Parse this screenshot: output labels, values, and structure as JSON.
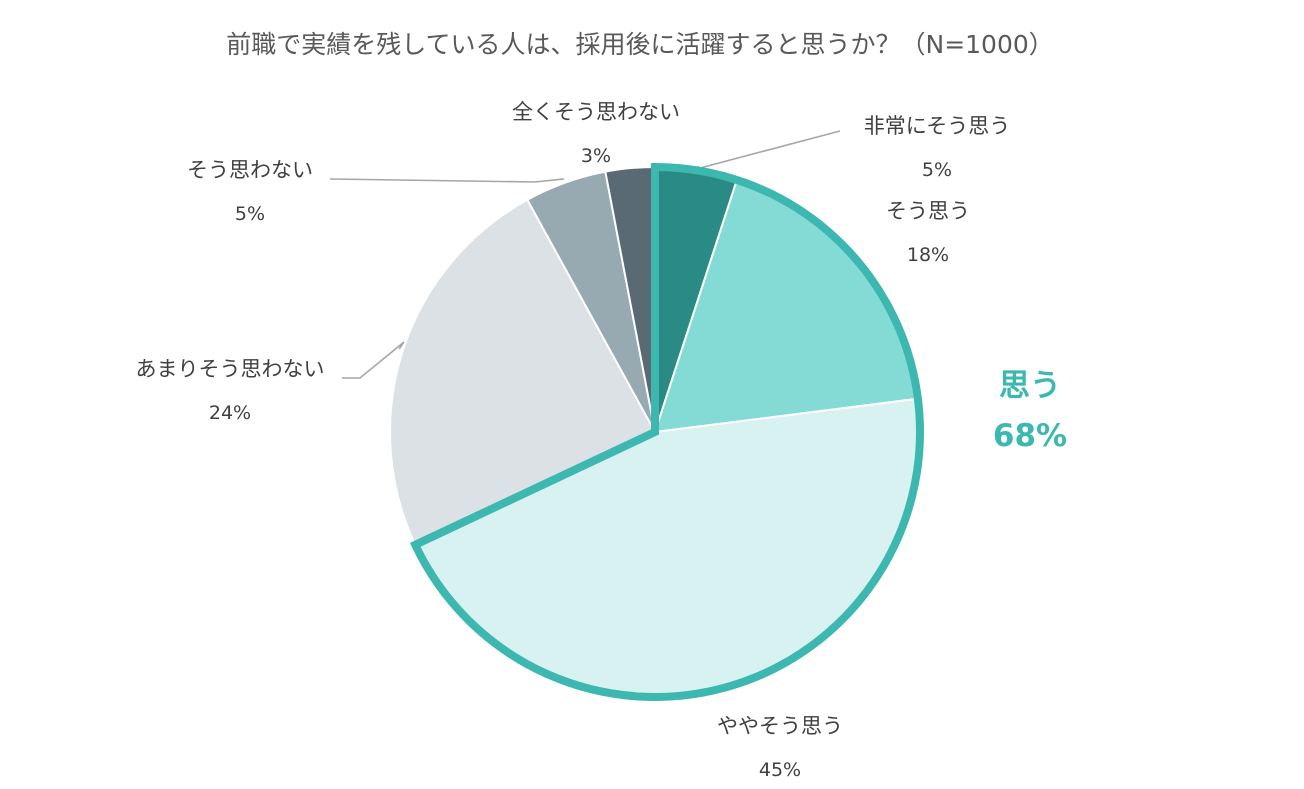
{
  "chart_data": {
    "type": "pie",
    "title": "前職で実績を残している人は、採用後に活躍すると思うか？（N=1000）",
    "slices": [
      {
        "label": "非常にそう思う",
        "value": 5,
        "value_label": "5%",
        "color": "#2a8a84"
      },
      {
        "label": "そう思う",
        "value": 18,
        "value_label": "18%",
        "color": "#84dbd5"
      },
      {
        "label": "ややそう思う",
        "value": 45,
        "value_label": "45%",
        "color": "#d8f1f1"
      },
      {
        "label": "あまりそう思わない",
        "value": 24,
        "value_label": "24%",
        "color": "#dce1e5"
      },
      {
        "label": "そう思わない",
        "value": 5,
        "value_label": "5%",
        "color": "#97a9b1"
      },
      {
        "label": "全くそう思わない",
        "value": 3,
        "value_label": "3%",
        "color": "#596a74"
      }
    ],
    "highlight_group": {
      "label": "思う",
      "value": 68,
      "value_label": "68%",
      "color": "#3db8b0"
    }
  }
}
